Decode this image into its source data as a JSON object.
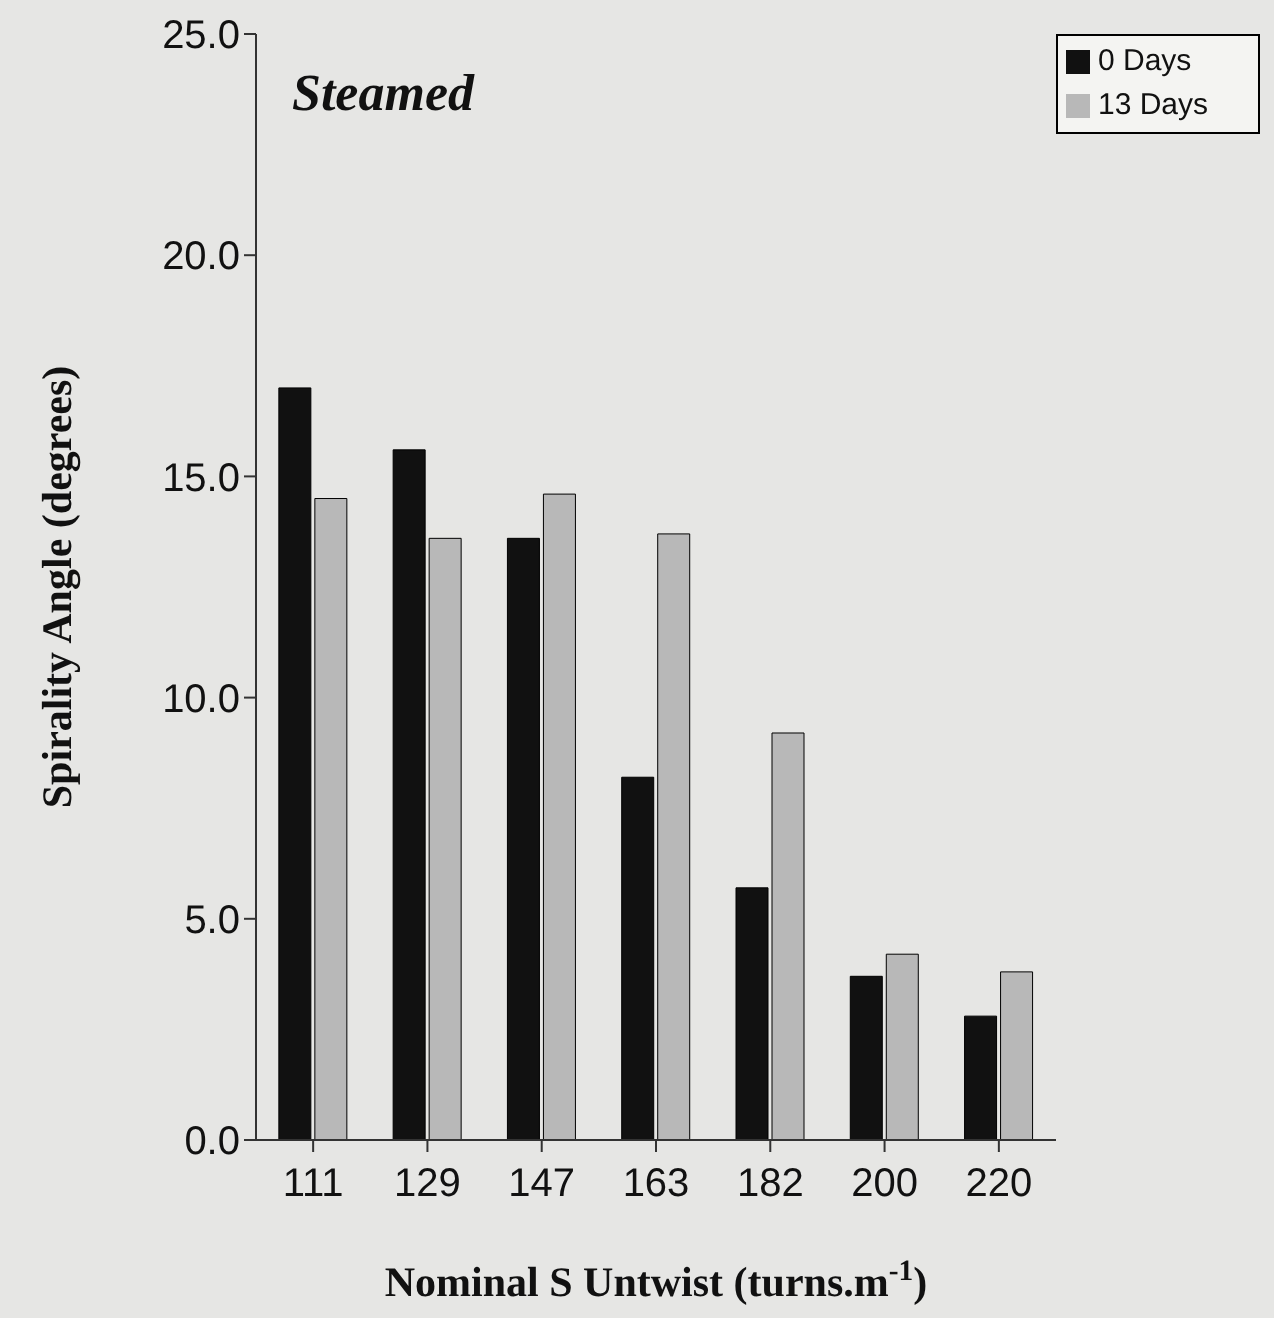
{
  "chart_data": {
    "type": "bar",
    "title": "Steamed",
    "xlabel": "Nominal S Untwist (turns.m$^{-1}$)",
    "ylabel": "Spirality Angle (degrees)",
    "categories": [
      "111",
      "129",
      "147",
      "163",
      "182",
      "200",
      "220"
    ],
    "series": [
      {
        "name": "0 Days",
        "color": "#111111",
        "values": [
          17.0,
          15.6,
          13.6,
          8.2,
          5.7,
          3.7,
          2.8
        ]
      },
      {
        "name": "13 Days",
        "color": "#b8b8b8",
        "values": [
          14.5,
          13.6,
          14.6,
          13.7,
          9.2,
          4.2,
          3.8
        ]
      }
    ],
    "ylim": [
      0,
      25
    ],
    "yticks": [
      {
        "value": 0,
        "label": "0.0"
      },
      {
        "value": 5,
        "label": "5.0"
      },
      {
        "value": 10,
        "label": "10.0"
      },
      {
        "value": 15,
        "label": "15.0"
      },
      {
        "value": 20,
        "label": "20.0"
      },
      {
        "value": 25,
        "label": "25.0"
      }
    ],
    "legend": "top right"
  }
}
